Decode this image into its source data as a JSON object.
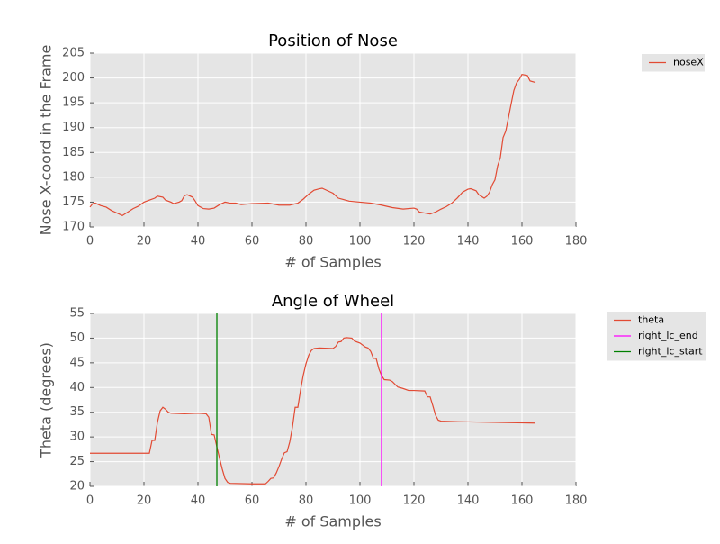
{
  "chart_data": [
    {
      "type": "line",
      "title": "Position of Nose",
      "xlabel": "# of Samples",
      "ylabel": "Nose X-coord in the Frame",
      "x": [
        0,
        1,
        2,
        4,
        6,
        8,
        10,
        12,
        14,
        16,
        18,
        20,
        22,
        24,
        25,
        27,
        28,
        30,
        31,
        33,
        34,
        35,
        36,
        38,
        39,
        40,
        42,
        44,
        46,
        48,
        50,
        52,
        54,
        56,
        60,
        66,
        70,
        74,
        77,
        79,
        81,
        83,
        85,
        86,
        88,
        90,
        92,
        96,
        100,
        104,
        108,
        112,
        116,
        120,
        121,
        122,
        124,
        126,
        128,
        130,
        132,
        134,
        136,
        138,
        140,
        141,
        143,
        144,
        146,
        147,
        148,
        149,
        150,
        151,
        152,
        153,
        154,
        155,
        156,
        157,
        158,
        159,
        160,
        162,
        163,
        165
      ],
      "series": [
        {
          "name": "noseX",
          "color": "#e24a33",
          "values": [
            174,
            174.7,
            174.8,
            174.3,
            174,
            173.3,
            172.8,
            172.3,
            173,
            173.7,
            174.2,
            175,
            175.4,
            175.8,
            176.2,
            176,
            175.4,
            175,
            174.7,
            175,
            175.3,
            176.3,
            176.5,
            176,
            175.2,
            174.3,
            173.7,
            173.6,
            173.8,
            174.5,
            175,
            174.8,
            174.8,
            174.5,
            174.7,
            174.8,
            174.4,
            174.4,
            174.8,
            175.6,
            176.6,
            177.4,
            177.7,
            177.8,
            177.3,
            176.8,
            175.8,
            175.2,
            175,
            174.8,
            174.4,
            173.9,
            173.6,
            173.8,
            173.6,
            173,
            172.8,
            172.6,
            173,
            173.6,
            174.1,
            174.8,
            175.8,
            177,
            177.6,
            177.7,
            177.3,
            176.5,
            175.8,
            176.2,
            177,
            178.5,
            179.5,
            182.3,
            184,
            188,
            189.3,
            192,
            194.8,
            197.5,
            199,
            199.7,
            200.7,
            200.5,
            199.4,
            199.1
          ]
        }
      ],
      "xlim": [
        0,
        180
      ],
      "xticks": [
        0,
        20,
        40,
        60,
        80,
        100,
        120,
        140,
        160,
        180
      ],
      "ylim": [
        170,
        205
      ],
      "yticks": [
        170,
        175,
        180,
        185,
        190,
        195,
        200,
        205
      ],
      "grid": true,
      "legend": "outside-right"
    },
    {
      "type": "line",
      "title": "Angle of Wheel",
      "xlabel": "# of Samples",
      "ylabel": "Theta (degrees)",
      "x": [
        0,
        22,
        23,
        24,
        25,
        26,
        27,
        28,
        29,
        30,
        35,
        40,
        43,
        44,
        45,
        46,
        47,
        48,
        49,
        50,
        51,
        52,
        60,
        65,
        66,
        67,
        68,
        69,
        70,
        71,
        72,
        73,
        74,
        75,
        76,
        77,
        78,
        79,
        80,
        81,
        82,
        83,
        85,
        90,
        91,
        92,
        93,
        94,
        95,
        97,
        98,
        100,
        102,
        103,
        104,
        105,
        106,
        107,
        108,
        109,
        111,
        112,
        114,
        116,
        118,
        120,
        124,
        125,
        126,
        127,
        128,
        129,
        130,
        135,
        165
      ],
      "series": [
        {
          "name": "theta",
          "color": "#e24a33",
          "values": [
            26.7,
            26.7,
            29.3,
            29.3,
            33,
            35.3,
            36,
            35.6,
            35,
            34.8,
            34.7,
            34.8,
            34.7,
            34,
            30.5,
            30.4,
            28,
            25.7,
            23.5,
            21.6,
            20.8,
            20.6,
            20.5,
            20.5,
            21,
            21.6,
            21.7,
            22.7,
            24,
            25.5,
            26.8,
            27,
            29,
            32,
            36,
            36,
            39.5,
            42.5,
            44.8,
            46.5,
            47.5,
            47.9,
            48,
            47.9,
            48.3,
            49.2,
            49.3,
            50,
            50.1,
            50,
            49.4,
            49,
            48.2,
            48,
            47.3,
            45.9,
            45.9,
            43.8,
            42.4,
            41.6,
            41.5,
            41.2,
            40.1,
            39.8,
            39.4,
            39.4,
            39.3,
            38.1,
            38.1,
            36.3,
            34.4,
            33.4,
            33.2,
            33.1,
            32.8
          ]
        }
      ],
      "vlines": [
        {
          "name": "right_lc_end",
          "color": "#ff00ff",
          "x": 108
        },
        {
          "name": "right_lc_start",
          "color": "#008000",
          "x": 47
        }
      ],
      "xlim": [
        0,
        180
      ],
      "xticks": [
        0,
        20,
        40,
        60,
        80,
        100,
        120,
        140,
        160,
        180
      ],
      "ylim": [
        20,
        55
      ],
      "yticks": [
        20,
        25,
        30,
        35,
        40,
        45,
        50,
        55
      ],
      "grid": true,
      "legend": "outside-right"
    }
  ]
}
